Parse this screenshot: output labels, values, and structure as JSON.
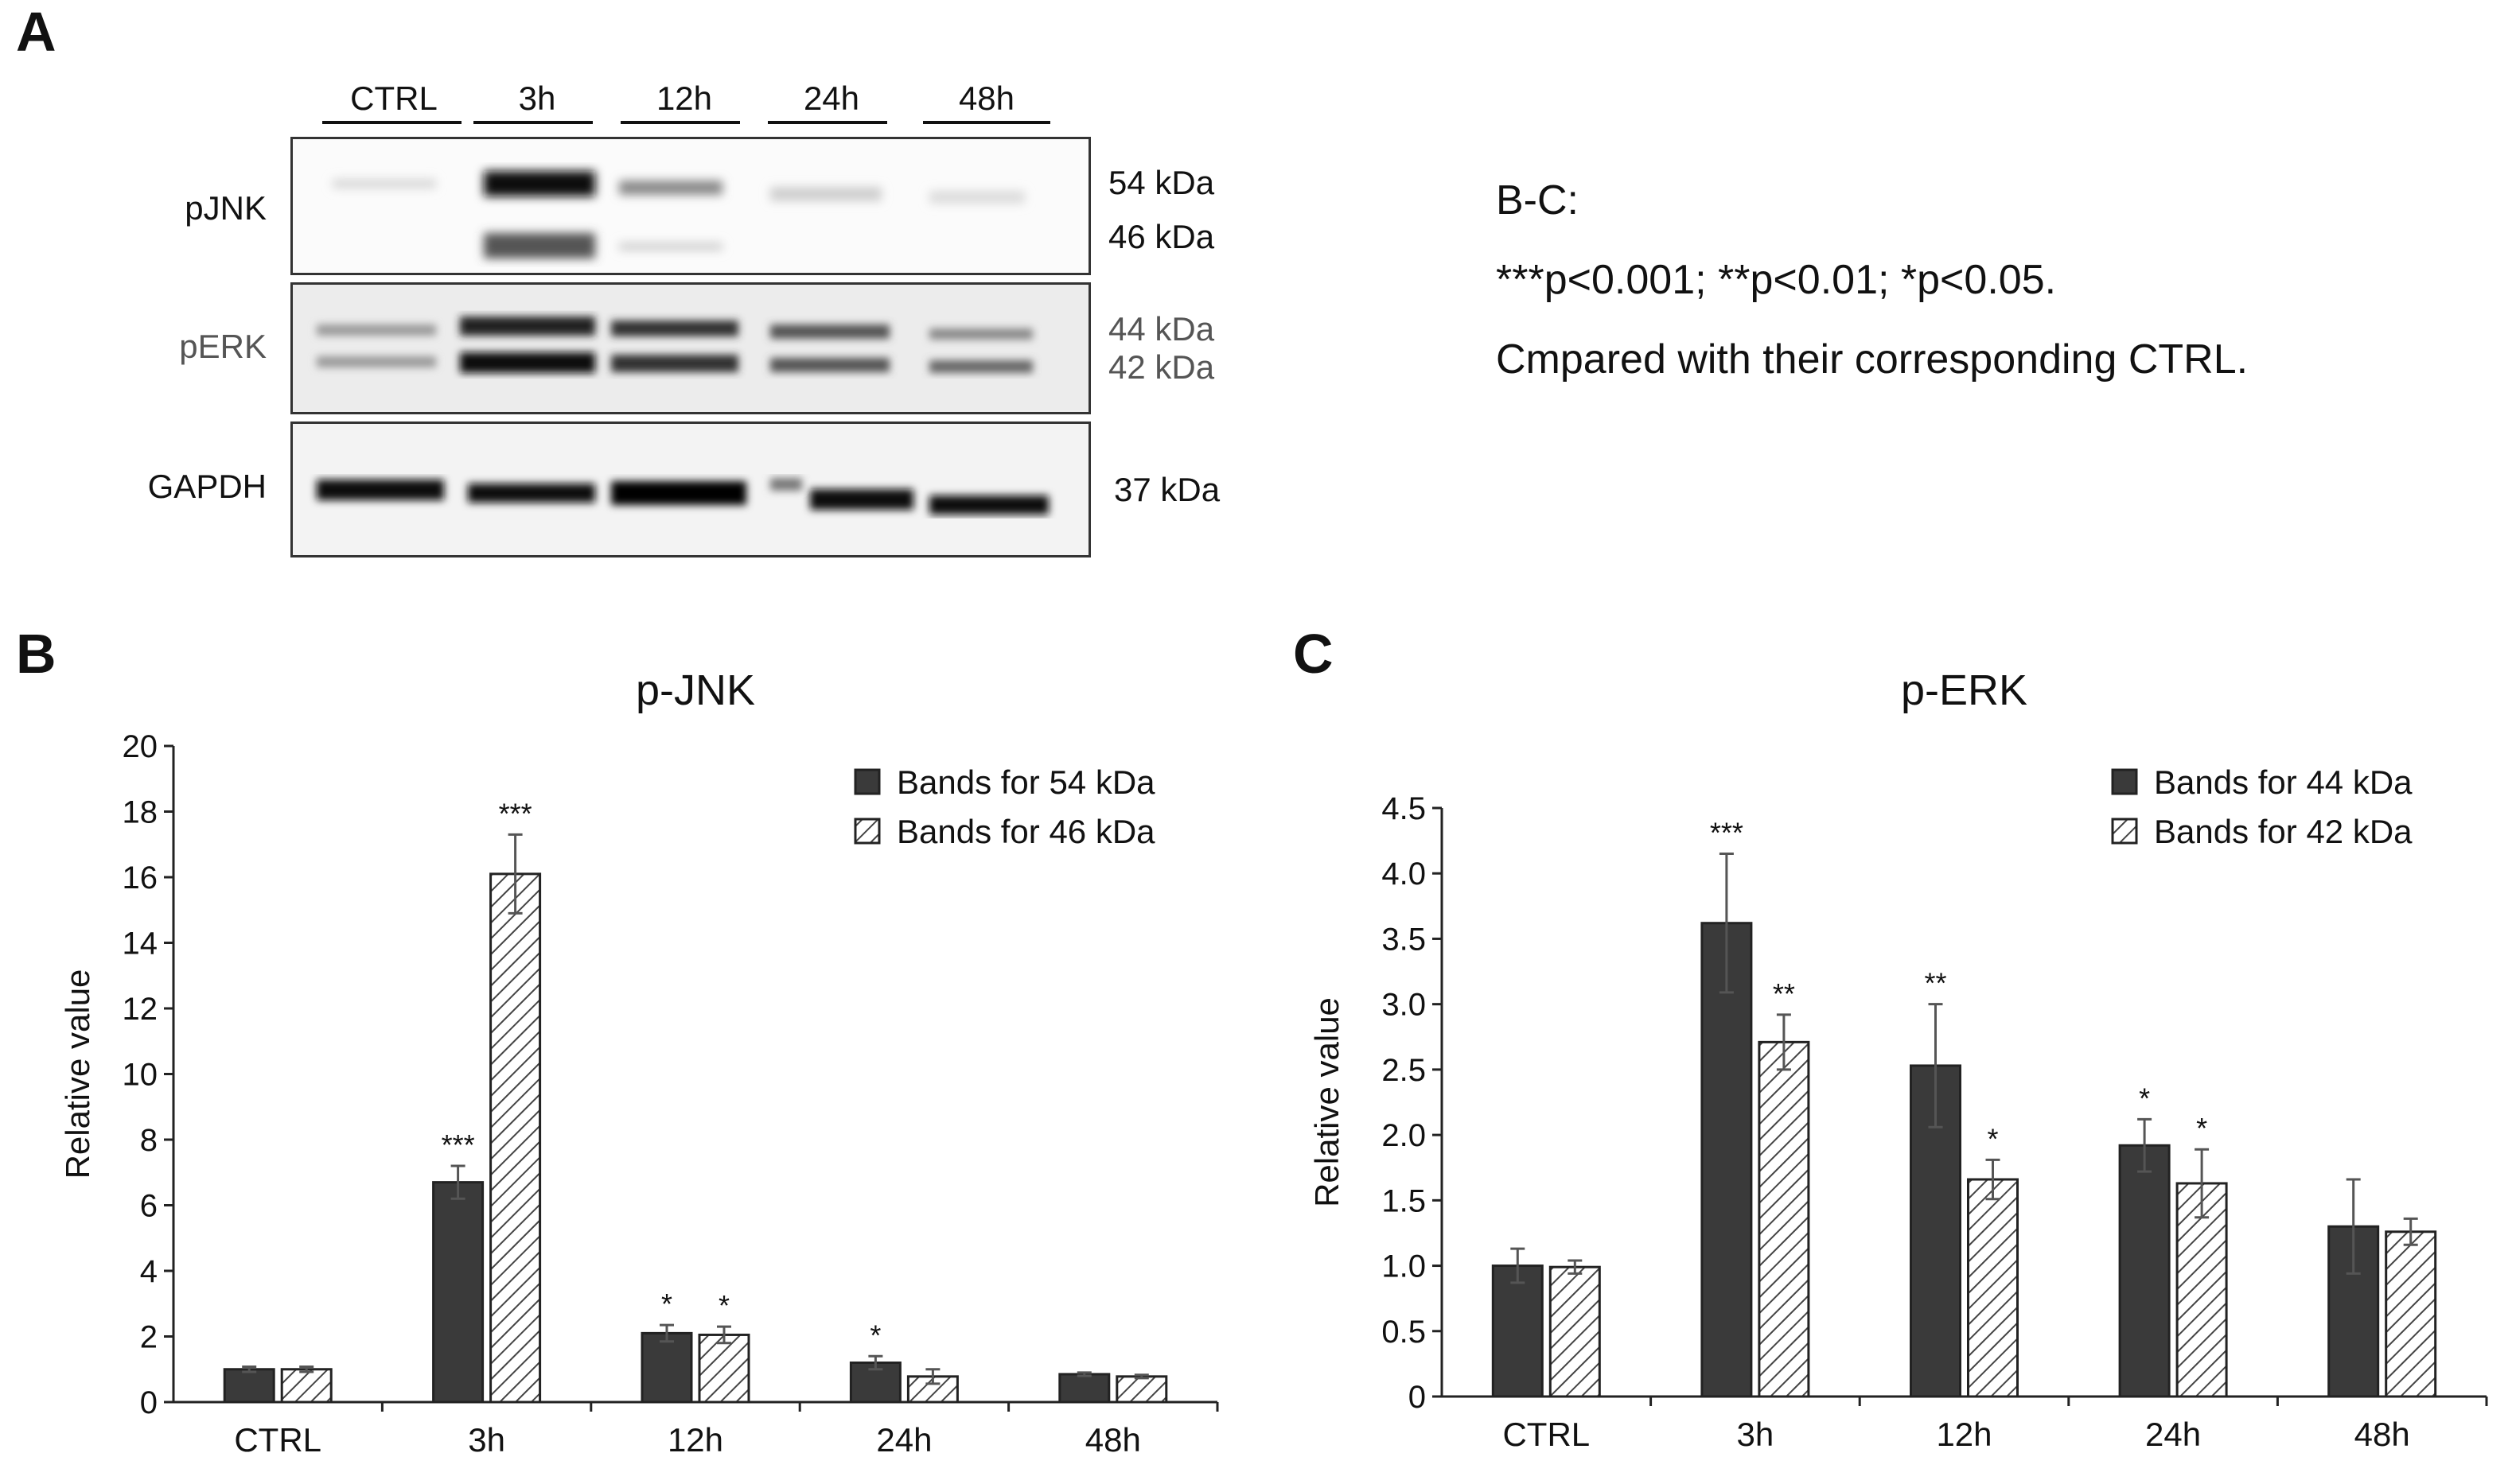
{
  "panel_a": {
    "letter": "A",
    "lanes": [
      "CTRL",
      "3h",
      "12h",
      "24h",
      "48h"
    ],
    "rows": [
      {
        "label": "pJNK",
        "kda": [
          "54 kDa",
          "46 kDa"
        ]
      },
      {
        "label": "pERK",
        "kda": [
          "44 kDa",
          "42 kDa"
        ]
      },
      {
        "label": "GAPDH",
        "kda": [
          "37 kDa"
        ]
      }
    ]
  },
  "notes": {
    "line1": "B-C:",
    "line2": "***p<0.001; **p<0.01; *p<0.05.",
    "line3": "Cmpared with their corresponding CTRL."
  },
  "chart_data": [
    {
      "panel": "B",
      "type": "bar",
      "title": "p-JNK",
      "ylabel": "Relative value",
      "xlabel": "",
      "categories": [
        "CTRL",
        "3h",
        "12h",
        "24h",
        "48h"
      ],
      "ylim": [
        0,
        20
      ],
      "yticks": [
        0,
        2,
        4,
        6,
        8,
        10,
        12,
        14,
        16,
        18,
        20
      ],
      "legend_position": "top-right",
      "series": [
        {
          "name": "Bands for 54 kDa",
          "fill": "solid",
          "color": "#3a3a3a",
          "values": [
            1.0,
            6.7,
            2.1,
            1.2,
            0.85
          ],
          "errors": [
            0.08,
            0.5,
            0.25,
            0.2,
            0.05
          ],
          "sig": [
            "",
            "***",
            "*",
            "*",
            ""
          ]
        },
        {
          "name": "Bands for 46 kDa",
          "fill": "hatched",
          "color": "#555555",
          "values": [
            1.0,
            16.1,
            2.05,
            0.78,
            0.78
          ],
          "errors": [
            0.08,
            1.2,
            0.25,
            0.22,
            0.05
          ],
          "sig": [
            "",
            "***",
            "*",
            "",
            ""
          ]
        }
      ]
    },
    {
      "panel": "C",
      "type": "bar",
      "title": "p-ERK",
      "ylabel": "Relative value",
      "xlabel": "",
      "categories": [
        "CTRL",
        "3h",
        "12h",
        "24h",
        "48h"
      ],
      "ylim": [
        0,
        4.5
      ],
      "yticks": [
        "0",
        "0.5",
        "1.0",
        "1.5",
        "2.0",
        "2.5",
        "3.0",
        "3.5",
        "4.0",
        "4.5"
      ],
      "legend_position": "top-right",
      "series": [
        {
          "name": "Bands for 44 kDa",
          "fill": "solid",
          "color": "#3a3a3a",
          "values": [
            1.0,
            3.62,
            2.53,
            1.92,
            1.3
          ],
          "errors": [
            0.13,
            0.53,
            0.47,
            0.2,
            0.36
          ],
          "sig": [
            "",
            "***",
            "**",
            "*",
            ""
          ]
        },
        {
          "name": "Bands for 42 kDa",
          "fill": "hatched",
          "color": "#555555",
          "values": [
            0.99,
            2.71,
            1.66,
            1.63,
            1.26
          ],
          "errors": [
            0.05,
            0.21,
            0.15,
            0.26,
            0.1
          ],
          "sig": [
            "",
            "**",
            "*",
            "*",
            ""
          ]
        }
      ]
    }
  ]
}
